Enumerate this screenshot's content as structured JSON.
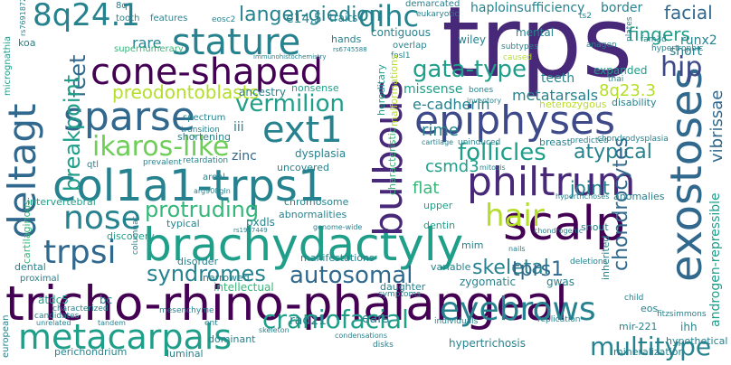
{
  "words": {
    "trps": "trps",
    "tricho_rhino_phalangeal": "tricho-rhino-phalangeal",
    "brachydactyly": "brachydactyly",
    "col1a1_trps1": "col1a1-trps1",
    "epiphyses": "epiphyses",
    "exostoses": "exostoses",
    "cone_shaped": "cone-shaped",
    "stature": "stature",
    "scalp": "scalp",
    "philtrum": "philtrum",
    "bulbous": "bulbous",
    "sparse": "sparse",
    "deltagt": "deltagt",
    "metacarpals": "metacarpals",
    "eyebrows": "eyebrows",
    "ext1": "ext1",
    "hair": "hair",
    "nose": "nose",
    "trpsi": "trpsi",
    "8q24_1": "8q24.1",
    "qihc": "qihc",
    "autosomal": "autosomal",
    "craniofacial": "craniofacial",
    "multitype": "multitype",
    "ikaros_like": "ikaros-like",
    "gata_type": "gata-type",
    "hip": "hip",
    "vermilion": "vermilion",
    "follicles": "follicles",
    "syndromes": "syndromes",
    "protruding": "protruding",
    "preodontoblasts": "preodontoblasts",
    "langer_giedion": "langer-giedion",
    "fingers": "fingers",
    "facial": "facial",
    "feet": "feet",
    "breakpoint": "breakpoint",
    "atypical": "atypical",
    "chondrocytes": "chondrocytes",
    "skeletal": "skeletal",
    "tprs1": "tprs1",
    "joint": "joint",
    "rime": "rime",
    "csmd3": "csmd3",
    "flat": "flat",
    "8q23_3": "8q23.3",
    "metatarsals": "metatarsals",
    "e_cadherin": "e-cadherin",
    "missense": "missense",
    "rare": "rare",
    "e14_5": "e14.5",
    "haploinsufficiency": "haploinsufficiency",
    "border": "border",
    "runx2": "runx2",
    "short": "short",
    "androgen_repressible": "androgen-repressible",
    "vibrissae": "vibrissae",
    "teeth": "teeth",
    "expanded": "expanded",
    "mental": "mental",
    "wiley": "wiley",
    "contiguous": "contiguous",
    "hands": "hands",
    "ancestry": "ancestry",
    "koa": "koa",
    "nonsense": "nonsense",
    "iii": "iii",
    "shortening": "shortening",
    "zinc": "zinc",
    "dysplasia": "dysplasia",
    "uncovered": "uncovered",
    "chromosome": "chromosome",
    "intervertebral": "intervertebral",
    "discovery": "discovery",
    "typical": "typical",
    "pxdls": "pxdls",
    "abnormalities": "abnormalities",
    "disorder": "disorder",
    "manifestations": "manifestations",
    "narrowed": "narrowed",
    "intellectual": "intellectual",
    "rad21": "rad21",
    "ears": "ears",
    "hypertrichosis": "hypertrichosis",
    "mineralization": "mineralization",
    "perichondrium": "perichondrium",
    "luminal": "luminal",
    "dominant": "dominant",
    "european": "european",
    "atdc5": "atdc5",
    "bc": "bc",
    "daughter": "daughter",
    "zygomatic": "zygomatic",
    "gwas": "gwas",
    "mim": "mim",
    "snout": "snout",
    "dentin": "dentin",
    "upper": "upper",
    "variable": "variable",
    "inherited": "inherited",
    "anomalies": "anomalies",
    "breast": "breast",
    "disability": "disability",
    "heterozygous": "heterozygous",
    "ihh": "ihh",
    "mir_221": "mir-221",
    "hypothetical": "hypothetical",
    "eos": "eos",
    "dental": "dental",
    "proximal": "proximal",
    "spectrum": "spectrum",
    "qtl": "qtl",
    "cartilaginous": "cartilaginous",
    "micrognathia": "micrognathia",
    "supernumerary": "supernumerary",
    "features": "features",
    "traits": "traits",
    "demarcated": "demarcated",
    "eukaryotic": "eukaryotic",
    "tooth": "tooth",
    "8q": "8q",
    "rs7691872": "rs7691872",
    "eosc2": "eosc2",
    "ts2": "ts2",
    "plates": "plates",
    "anagen": "anagen",
    "fam3d": "fam3d",
    "hypertrophic": "hypertrophic",
    "subtypes": "subtypes",
    "overlap": "overlap",
    "fosl1": "fosl1",
    "caused": "caused",
    "thai": "thai",
    "bones": "bones",
    "inventory": "inventory",
    "characteristic": "characteristic",
    "hereditary": "hereditary",
    "malformations": "malformations",
    "prevalent": "prevalent",
    "retardation": "retardation",
    "transition": "transition",
    "uninduced": "uninduced",
    "predicted": "predicted",
    "chondrodysplasia": "chondrodysplasia",
    "cartilage": "cartilage",
    "mitosis": "mitosis",
    "areal": "areal",
    "arg908gln": "arg908gln",
    "columnar": "columnar",
    "mesenchyme": "mesenchyme",
    "candidates": "candidates",
    "characterized": "characterized",
    "unrelated": "unrelated",
    "tandem": "tandem",
    "symptoms": "symptoms",
    "condensations": "condensations",
    "disks": "disks",
    "individuals": "individuals",
    "replication": "replication",
    "fitzsimmons": "fitzsimmons",
    "child": "child",
    "deletions": "deletions",
    "nails": "nails",
    "chondrogenic": "chondrogenic",
    "immunohistochemistry": "immunohistochemistry",
    "rs6745588": "rs6745588",
    "rs1957449": "rs1957449",
    "genome_wide": "genome-wide",
    "skeleton": "skeleton",
    "ent": "ent",
    "hypertrichoses": "hypertrichoses"
  }
}
